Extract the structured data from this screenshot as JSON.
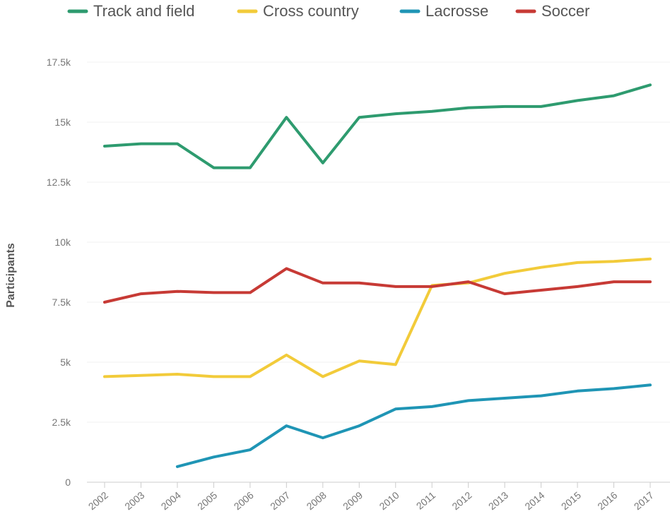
{
  "chart_data": {
    "type": "line",
    "ylabel": "Participants",
    "ylim": [
      0,
      17500
    ],
    "y_ticks": [
      {
        "value": 0,
        "label": "0"
      },
      {
        "value": 2500,
        "label": "2.5k"
      },
      {
        "value": 5000,
        "label": "5k"
      },
      {
        "value": 7500,
        "label": "7.5k"
      },
      {
        "value": 10000,
        "label": "10k"
      },
      {
        "value": 12500,
        "label": "12.5k"
      },
      {
        "value": 15000,
        "label": "15k"
      },
      {
        "value": 17500,
        "label": "17.5k"
      }
    ],
    "x": [
      "2002",
      "2003",
      "2004",
      "2005",
      "2006",
      "2007",
      "2008",
      "2009",
      "2010",
      "2011",
      "2012",
      "2013",
      "2014",
      "2015",
      "2016",
      "2017"
    ],
    "grid": true,
    "legend_position": "top",
    "series": [
      {
        "name": "Track and field",
        "color": "#2e9b6f",
        "values": [
          14000,
          14100,
          14100,
          13100,
          13100,
          15200,
          13300,
          15200,
          15350,
          15450,
          15600,
          15650,
          15650,
          15900,
          16100,
          16550
        ]
      },
      {
        "name": "Cross country",
        "color": "#f2cb3a",
        "values": [
          4400,
          4450,
          4500,
          4400,
          4400,
          5300,
          4400,
          5050,
          4900,
          8200,
          8300,
          8700,
          8950,
          9150,
          9200,
          9300
        ]
      },
      {
        "name": "Lacrosse",
        "color": "#1f95b5",
        "values": [
          null,
          null,
          650,
          1050,
          1350,
          2350,
          1850,
          2350,
          3050,
          3150,
          3400,
          3500,
          3600,
          3800,
          3900,
          4050
        ]
      },
      {
        "name": "Soccer",
        "color": "#c73a35",
        "values": [
          7500,
          7850,
          7950,
          7900,
          7900,
          8900,
          8300,
          8300,
          8150,
          8150,
          8350,
          7850,
          8000,
          8150,
          8350,
          8350
        ]
      }
    ]
  }
}
